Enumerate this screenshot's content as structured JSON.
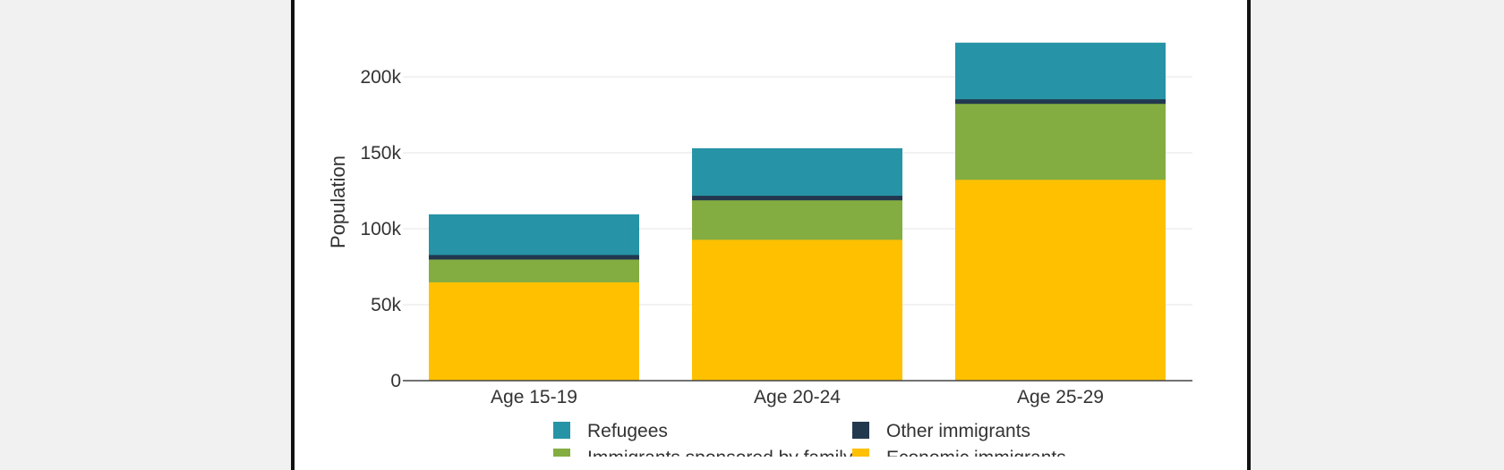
{
  "chart_data": {
    "type": "bar",
    "stacked": true,
    "categories": [
      "Age 15-19",
      "Age 20-24",
      "Age 25-29"
    ],
    "series": [
      {
        "name": "Economic immigrants",
        "color": "#ffc000",
        "values": [
          65000,
          93000,
          132500
        ]
      },
      {
        "name": "Immigrants sponsored by family",
        "color": "#84ad41",
        "values": [
          15000,
          26000,
          50000
        ]
      },
      {
        "name": "Other immigrants",
        "color": "#22384f",
        "values": [
          3000,
          3000,
          3000
        ]
      },
      {
        "name": "Refugees",
        "color": "#2793a6",
        "values": [
          26500,
          31000,
          37000
        ]
      }
    ],
    "ylabel": "Population",
    "ylim": [
      0,
      225000
    ],
    "yticks": [
      0,
      50000,
      100000,
      150000,
      200000
    ],
    "ytick_labels": [
      "0",
      "50k",
      "100k",
      "150k",
      "200k"
    ],
    "grid": true,
    "legend_position": "bottom",
    "legend_order": [
      "Refugees",
      "Other immigrants",
      "Immigrants sponsored by family",
      "Economic immigrants"
    ]
  }
}
